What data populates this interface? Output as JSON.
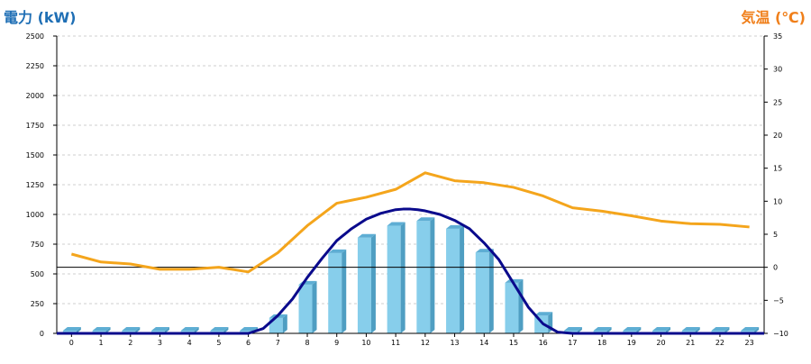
{
  "labels": {
    "left_title": "電力 (kW)",
    "right_title": "気温 (℃)"
  },
  "colors": {
    "left_title": "#1f6fb5",
    "right_title": "#f07f1a",
    "bar_front": "#87ceeb",
    "bar_side": "#4f9ec2",
    "bar_top": "#5eaed4",
    "power_line": "#0a0a8c",
    "temp_line": "#f4a51c",
    "grid": "#cfcfcf"
  },
  "chart_data": {
    "type": "bar",
    "categories": [
      "0",
      "1",
      "2",
      "3",
      "4",
      "5",
      "6",
      "7",
      "8",
      "9",
      "10",
      "11",
      "12",
      "13",
      "14",
      "15",
      "16",
      "17",
      "18",
      "19",
      "20",
      "21",
      "22",
      "23"
    ],
    "series": [
      {
        "type": "bar",
        "axis": "left",
        "values": [
          0,
          0,
          0,
          0,
          0,
          0,
          0,
          130,
          410,
          675,
          805,
          905,
          945,
          880,
          680,
          425,
          150,
          0,
          0,
          0,
          0,
          0,
          0,
          0
        ]
      },
      {
        "type": "line",
        "axis": "left",
        "x": [
          6,
          6.5,
          7,
          7.5,
          8,
          8.5,
          9,
          9.5,
          10,
          10.5,
          11,
          11.25,
          11.5,
          11.75,
          12,
          12.5,
          13,
          13.5,
          14,
          14.5,
          15,
          15.5,
          16,
          16.5,
          17
        ],
        "values": [
          0,
          40,
          150,
          290,
          470,
          630,
          780,
          880,
          960,
          1010,
          1040,
          1045,
          1045,
          1040,
          1030,
          1000,
          950,
          880,
          760,
          620,
          420,
          220,
          80,
          10,
          0
        ]
      },
      {
        "type": "line",
        "axis": "right",
        "values": [
          2.0,
          0.8,
          0.5,
          -0.3,
          -0.3,
          0.0,
          -0.7,
          2.2,
          6.3,
          9.7,
          10.6,
          11.8,
          14.3,
          13.1,
          12.8,
          12.1,
          10.8,
          9.0,
          8.5,
          7.8,
          7.0,
          6.6,
          6.5,
          6.1
        ]
      }
    ],
    "y_left": {
      "min": 0,
      "max": 2500,
      "ticks": [
        0,
        250,
        500,
        750,
        1000,
        1250,
        1500,
        1750,
        2000,
        2250,
        2500
      ]
    },
    "y_right": {
      "min": -10,
      "max": 35,
      "ticks": [
        -10,
        -5,
        0,
        5,
        10,
        15,
        20,
        25,
        30,
        35
      ]
    },
    "zero_line_right": 0,
    "grid": "horizontal dashed",
    "legend": "none"
  }
}
